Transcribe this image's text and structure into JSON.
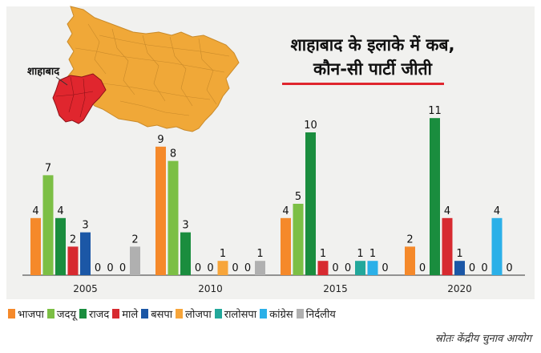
{
  "title": {
    "line1": "शाहाबाद के इलाके में कब,",
    "line2": "कौन-सी पार्टी जीती"
  },
  "map": {
    "label": "शाहाबाद",
    "colors": {
      "state": "#f0a838",
      "region": "#e0262e"
    }
  },
  "source": "स्रोतः केंद्रीय चुनाव आयोग",
  "chart_data": {
    "type": "bar",
    "categories": [
      "2005",
      "2010",
      "2015",
      "2020"
    ],
    "series": [
      {
        "name": "भाजपा",
        "color": "#f5892a",
        "values": [
          4,
          9,
          4,
          2
        ]
      },
      {
        "name": "जदयू",
        "color": "#7cbf45",
        "values": [
          7,
          8,
          5,
          0
        ]
      },
      {
        "name": "राजद",
        "color": "#1a8d3e",
        "values": [
          4,
          3,
          10,
          11
        ]
      },
      {
        "name": "माले",
        "color": "#d72a30",
        "values": [
          2,
          0,
          1,
          4
        ]
      },
      {
        "name": "बसपा",
        "color": "#1b57a6",
        "values": [
          3,
          0,
          0,
          1
        ]
      },
      {
        "name": "लोजपा",
        "color": "#f7a53a",
        "values": [
          0,
          1,
          0,
          0
        ]
      },
      {
        "name": "रालोसपा",
        "color": "#23a89b",
        "values": [
          0,
          0,
          1,
          0
        ]
      },
      {
        "name": "कांग्रेस",
        "color": "#2bb0e8",
        "values": [
          0,
          0,
          1,
          4
        ]
      },
      {
        "name": "निर्दलीय",
        "color": "#b0b0b0",
        "values": [
          2,
          1,
          0,
          0
        ]
      }
    ],
    "ylim": [
      0,
      11
    ],
    "data_labels": true,
    "legend_position": "bottom"
  }
}
